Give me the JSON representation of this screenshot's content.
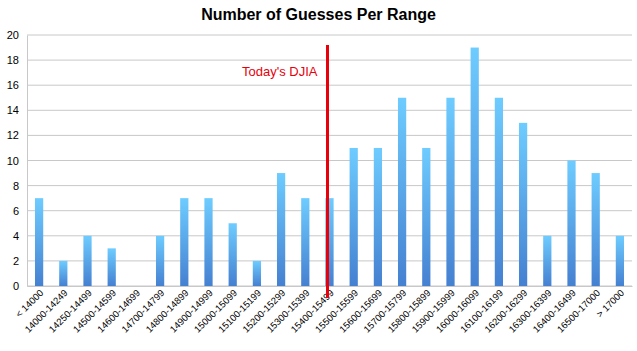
{
  "chart_data": {
    "type": "bar",
    "title": "Number of Guesses Per Range",
    "categories": [
      "< 14000",
      "14000-14249",
      "14250-14499",
      "14500-14599",
      "14600-14699",
      "14700-14799",
      "14800-14899",
      "14900-14999",
      "15000-15099",
      "15100-15199",
      "15200-15299",
      "15300-15399",
      "15400-15499",
      "15500-15599",
      "15600-15699",
      "15700-15799",
      "15800-15899",
      "15900-15999",
      "16000-16099",
      "16100-16199",
      "16200-16299",
      "16300-16399",
      "16400-16499",
      "16500-17000",
      "> 17000"
    ],
    "values": [
      7,
      2,
      4,
      3,
      0,
      4,
      7,
      7,
      5,
      2,
      9,
      7,
      7,
      11,
      11,
      15,
      11,
      15,
      19,
      15,
      13,
      4,
      10,
      9,
      4
    ],
    "color": "#4a8ae0",
    "ylim": [
      0,
      20
    ],
    "yticks": [
      0,
      2,
      4,
      6,
      8,
      10,
      12,
      14,
      16,
      18,
      20
    ],
    "grid": true,
    "annotations": [
      {
        "text": "Today's DJIA",
        "category": "15400-15499",
        "color": "#e8000b"
      }
    ]
  }
}
